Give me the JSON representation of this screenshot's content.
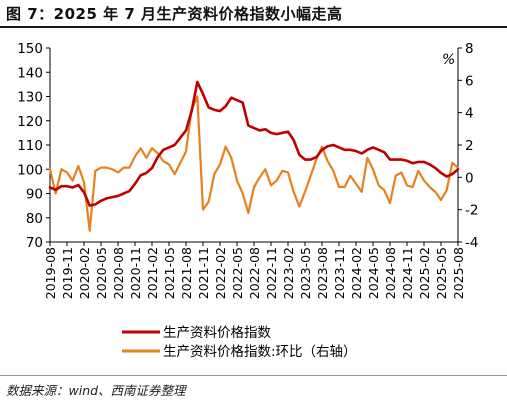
{
  "title": "图 7：2025 年 7 月生产资料价格指数小幅走高",
  "source": "数据来源：wind、西南证券整理",
  "colors": {
    "ppi": "#c00000",
    "mom": "#e6821e",
    "axis": "#000000"
  },
  "chart_data": {
    "type": "line",
    "y_unit_right": "%",
    "ylim_left": [
      70,
      150
    ],
    "ylim_right": [
      -4,
      8
    ],
    "yticks_left": [
      "70",
      "80",
      "90",
      "100",
      "110",
      "120",
      "130",
      "140",
      "150"
    ],
    "yticks_right": [
      "-4",
      "-2",
      "0",
      "2",
      "4",
      "6",
      "8"
    ],
    "x_ticks": [
      "2019-08",
      "2019-11",
      "2020-02",
      "2020-05",
      "2020-08",
      "2020-11",
      "2021-02",
      "2021-05",
      "2021-08",
      "2021-11",
      "2022-02",
      "2022-05",
      "2022-08",
      "2022-11",
      "2023-02",
      "2023-05",
      "2023-08",
      "2023-11",
      "2024-02",
      "2024-05",
      "2024-08",
      "2024-11",
      "2025-02",
      "2025-05",
      "2025-08"
    ],
    "series": [
      {
        "name": "生产资料价格指数",
        "axis": "left",
        "points": [
          [
            "2019-08",
            92.5
          ],
          [
            "2019-09",
            91.5
          ],
          [
            "2019-10",
            93
          ],
          [
            "2019-11",
            93
          ],
          [
            "2019-12",
            92.5
          ],
          [
            "2020-01",
            93.5
          ],
          [
            "2020-02",
            90.5
          ],
          [
            "2020-03",
            85
          ],
          [
            "2020-04",
            85.5
          ],
          [
            "2020-05",
            87
          ],
          [
            "2020-06",
            88
          ],
          [
            "2020-07",
            88.5
          ],
          [
            "2020-08",
            89
          ],
          [
            "2020-09",
            90
          ],
          [
            "2020-10",
            91
          ],
          [
            "2020-11",
            94
          ],
          [
            "2020-12",
            97.5
          ],
          [
            "2021-01",
            98.5
          ],
          [
            "2021-02",
            100.5
          ],
          [
            "2021-03",
            105
          ],
          [
            "2021-04",
            108
          ],
          [
            "2021-05",
            109
          ],
          [
            "2021-06",
            110
          ],
          [
            "2021-07",
            113
          ],
          [
            "2021-08",
            116
          ],
          [
            "2021-09",
            124
          ],
          [
            "2021-10",
            136
          ],
          [
            "2021-11",
            131
          ],
          [
            "2021-12",
            125.5
          ],
          [
            "2022-01",
            124.5
          ],
          [
            "2022-02",
            124
          ],
          [
            "2022-03",
            126
          ],
          [
            "2022-04",
            129.5
          ],
          [
            "2022-05",
            128.5
          ],
          [
            "2022-06",
            127.5
          ],
          [
            "2022-07",
            118
          ],
          [
            "2022-08",
            117
          ],
          [
            "2022-09",
            116
          ],
          [
            "2022-10",
            116.5
          ],
          [
            "2022-11",
            115
          ],
          [
            "2022-12",
            114.5
          ],
          [
            "2023-01",
            115
          ],
          [
            "2023-02",
            115.5
          ],
          [
            "2023-03",
            112
          ],
          [
            "2023-04",
            106
          ],
          [
            "2023-05",
            104
          ],
          [
            "2023-06",
            104
          ],
          [
            "2023-07",
            105
          ],
          [
            "2023-08",
            108
          ],
          [
            "2023-09",
            109.5
          ],
          [
            "2023-10",
            110
          ],
          [
            "2023-11",
            109
          ],
          [
            "2023-12",
            108
          ],
          [
            "2024-01",
            108
          ],
          [
            "2024-02",
            107.5
          ],
          [
            "2024-03",
            106.5
          ],
          [
            "2024-04",
            108
          ],
          [
            "2024-05",
            109
          ],
          [
            "2024-06",
            108
          ],
          [
            "2024-07",
            107
          ],
          [
            "2024-08",
            104
          ],
          [
            "2024-09",
            104
          ],
          [
            "2024-10",
            104
          ],
          [
            "2024-11",
            103.5
          ],
          [
            "2024-12",
            102.5
          ],
          [
            "2025-01",
            103
          ],
          [
            "2025-02",
            103
          ],
          [
            "2025-03",
            102
          ],
          [
            "2025-04",
            100.5
          ],
          [
            "2025-05",
            98.5
          ],
          [
            "2025-06",
            97
          ],
          [
            "2025-07",
            98
          ],
          [
            "2025-08",
            100
          ]
        ]
      },
      {
        "name": "生产资料价格指数:环比（右轴）",
        "axis": "right",
        "points": [
          [
            "2019-08",
            0.5
          ],
          [
            "2019-09",
            -1
          ],
          [
            "2019-10",
            0.5
          ],
          [
            "2019-11",
            0.3
          ],
          [
            "2019-12",
            -0.2
          ],
          [
            "2020-01",
            0.7
          ],
          [
            "2020-02",
            -0.3
          ],
          [
            "2020-03",
            -3.3
          ],
          [
            "2020-04",
            0.4
          ],
          [
            "2020-05",
            0.6
          ],
          [
            "2020-06",
            0.6
          ],
          [
            "2020-07",
            0.5
          ],
          [
            "2020-08",
            0.3
          ],
          [
            "2020-09",
            0.6
          ],
          [
            "2020-10",
            0.6
          ],
          [
            "2020-11",
            1.3
          ],
          [
            "2020-12",
            1.8
          ],
          [
            "2021-01",
            1.2
          ],
          [
            "2021-02",
            1.8
          ],
          [
            "2021-03",
            1.5
          ],
          [
            "2021-04",
            1
          ],
          [
            "2021-05",
            0.8
          ],
          [
            "2021-06",
            0.2
          ],
          [
            "2021-07",
            0.9
          ],
          [
            "2021-08",
            1.6
          ],
          [
            "2021-09",
            4.2
          ],
          [
            "2021-10",
            5
          ],
          [
            "2021-11",
            -2
          ],
          [
            "2021-12",
            -1.5
          ],
          [
            "2022-01",
            0.2
          ],
          [
            "2022-02",
            0.8
          ],
          [
            "2022-03",
            1.9
          ],
          [
            "2022-04",
            1.2
          ],
          [
            "2022-05",
            -0.2
          ],
          [
            "2022-06",
            -1
          ],
          [
            "2022-07",
            -2.2
          ],
          [
            "2022-08",
            -0.6
          ],
          [
            "2022-09",
            0
          ],
          [
            "2022-10",
            0.5
          ],
          [
            "2022-11",
            -0.5
          ],
          [
            "2022-12",
            -0.2
          ],
          [
            "2023-01",
            0.4
          ],
          [
            "2023-02",
            0.3
          ],
          [
            "2023-03",
            -0.9
          ],
          [
            "2023-04",
            -1.8
          ],
          [
            "2023-05",
            -0.9
          ],
          [
            "2023-06",
            0.1
          ],
          [
            "2023-07",
            1.1
          ],
          [
            "2023-08",
            1.9
          ],
          [
            "2023-09",
            1
          ],
          [
            "2023-10",
            0.4
          ],
          [
            "2023-11",
            -0.6
          ],
          [
            "2023-12",
            -0.6
          ],
          [
            "2024-01",
            0.1
          ],
          [
            "2024-02",
            -0.4
          ],
          [
            "2024-03",
            -0.9
          ],
          [
            "2024-04",
            1.2
          ],
          [
            "2024-05",
            0.5
          ],
          [
            "2024-06",
            -0.5
          ],
          [
            "2024-07",
            -0.8
          ],
          [
            "2024-08",
            -1.6
          ],
          [
            "2024-09",
            0.1
          ],
          [
            "2024-10",
            0.3
          ],
          [
            "2024-11",
            -0.5
          ],
          [
            "2024-12",
            -0.6
          ],
          [
            "2025-01",
            0.4
          ],
          [
            "2025-02",
            -0.2
          ],
          [
            "2025-03",
            -0.6
          ],
          [
            "2025-04",
            -0.9
          ],
          [
            "2025-05",
            -1.4
          ],
          [
            "2025-06",
            -0.8
          ],
          [
            "2025-07",
            0.9
          ],
          [
            "2025-08",
            0.6
          ]
        ]
      }
    ],
    "legend_position": "bottom-center",
    "grid": false
  }
}
